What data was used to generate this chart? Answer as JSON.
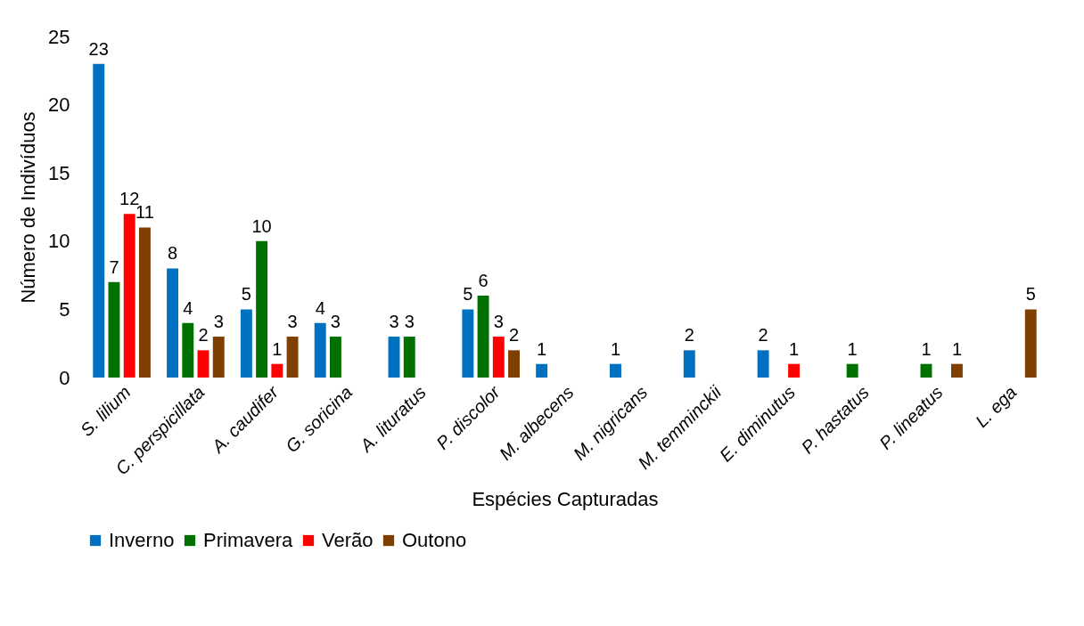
{
  "chart_data": {
    "type": "bar",
    "xlabel": "Espécies Capturadas",
    "ylabel": "Número de Indivíduos",
    "categories": [
      "S. lilium",
      "C. perspicillata",
      "A. caudifer",
      "G. soricina",
      "A. lituratus",
      "P. discolor",
      "M. albecens",
      "M. nigricans",
      "M. temminckii",
      "E. diminutus",
      "P. hastatus",
      "P. lineatus",
      "L. ega"
    ],
    "series": [
      {
        "name": "Inverno",
        "color": "#0070c0",
        "values": [
          23,
          8,
          5,
          4,
          3,
          5,
          1,
          1,
          2,
          2,
          null,
          null,
          null
        ]
      },
      {
        "name": "Primavera",
        "color": "#007000",
        "values": [
          7,
          4,
          10,
          3,
          3,
          6,
          null,
          null,
          null,
          null,
          1,
          1,
          null
        ]
      },
      {
        "name": "Verão",
        "color": "#ff0000",
        "values": [
          12,
          2,
          1,
          null,
          null,
          3,
          null,
          null,
          null,
          1,
          null,
          null,
          null
        ]
      },
      {
        "name": "Outono",
        "color": "#7f3f00",
        "values": [
          11,
          3,
          3,
          null,
          null,
          2,
          null,
          null,
          null,
          null,
          null,
          1,
          5
        ]
      }
    ],
    "ylim": [
      0,
      25
    ],
    "yticks": [
      0,
      5,
      10,
      15,
      20,
      25
    ],
    "grid": false,
    "legend": "bottom",
    "data_labels": true
  }
}
